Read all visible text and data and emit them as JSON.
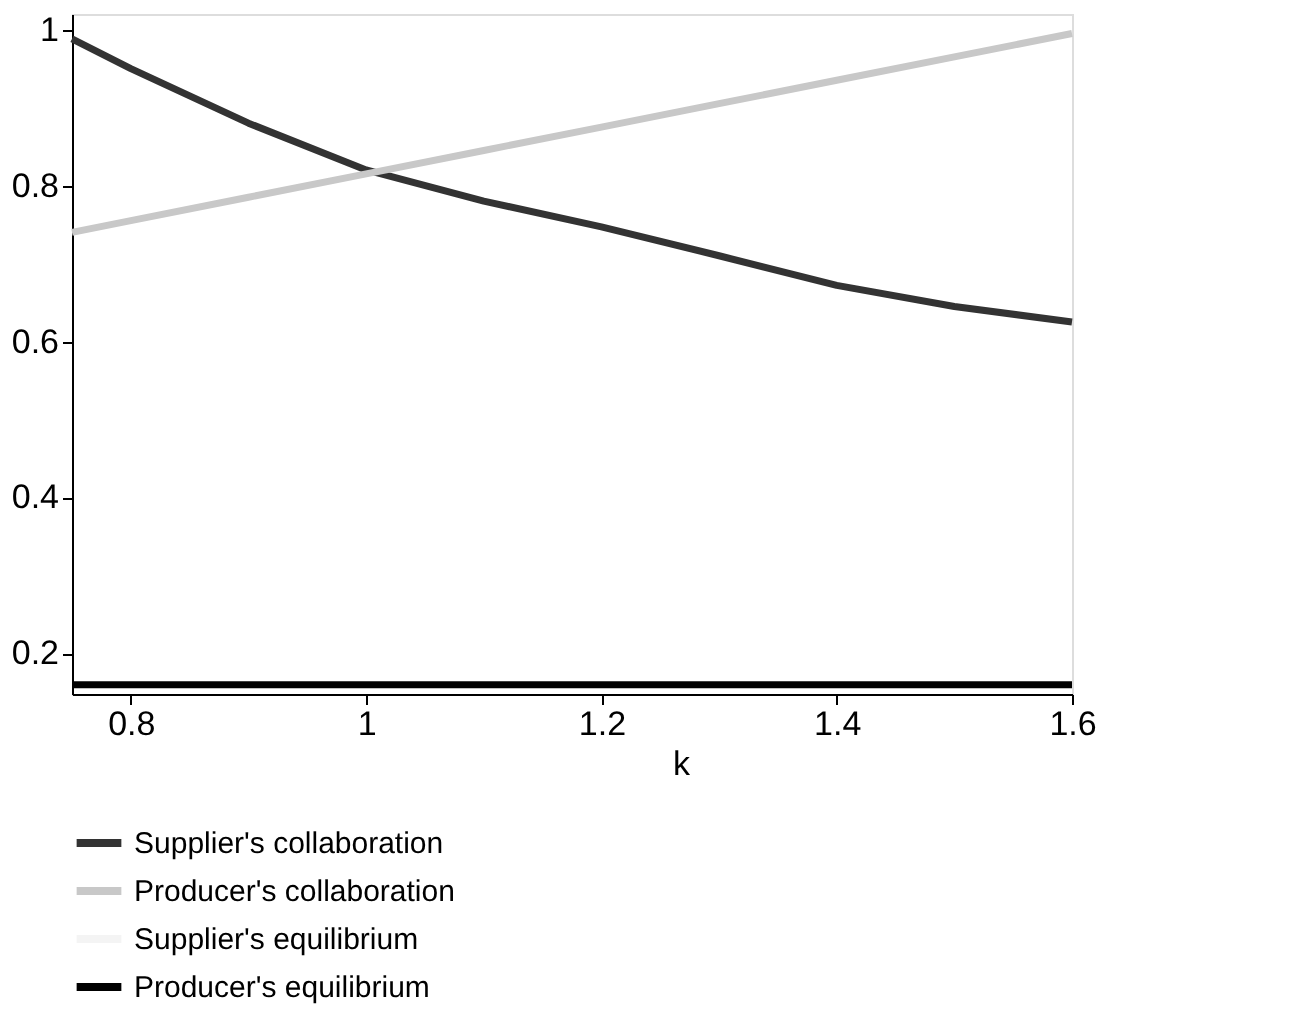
{
  "chart_data": {
    "type": "line",
    "xlabel": "k",
    "x": [
      0.75,
      0.8,
      0.9,
      1.0,
      1.1,
      1.2,
      1.3,
      1.4,
      1.5,
      1.6
    ],
    "series": [
      {
        "name": "Supplier's collaboration",
        "color": "#333333",
        "values": [
          0.988,
          0.95,
          0.88,
          0.82,
          0.78,
          0.747,
          0.71,
          0.672,
          0.645,
          0.625
        ]
      },
      {
        "name": "Producer's collaboration",
        "color": "#c8c8c8",
        "values": [
          0.74,
          0.755,
          0.785,
          0.815,
          0.845,
          0.875,
          0.905,
          0.935,
          0.965,
          0.995
        ]
      },
      {
        "name": "Supplier's equilibrium",
        "color": "#f4f4f4",
        "values": [
          null,
          null,
          null,
          null,
          null,
          null,
          null,
          null,
          null,
          null
        ]
      },
      {
        "name": "Producer's equilibrium",
        "color": "#000000",
        "values": [
          0.16,
          0.16,
          0.16,
          0.16,
          0.16,
          0.16,
          0.16,
          0.16,
          0.16,
          0.16
        ]
      }
    ],
    "xlim": [
      0.75,
      1.6
    ],
    "ylim": [
      0.148,
      1.02
    ],
    "xticks": [
      0.8,
      1,
      1.2,
      1.4,
      1.6
    ],
    "yticks": [
      0.2,
      0.4,
      0.6,
      0.8,
      1
    ],
    "grid": false,
    "legend": "bottom",
    "marker": "none",
    "line_style": "solid"
  }
}
